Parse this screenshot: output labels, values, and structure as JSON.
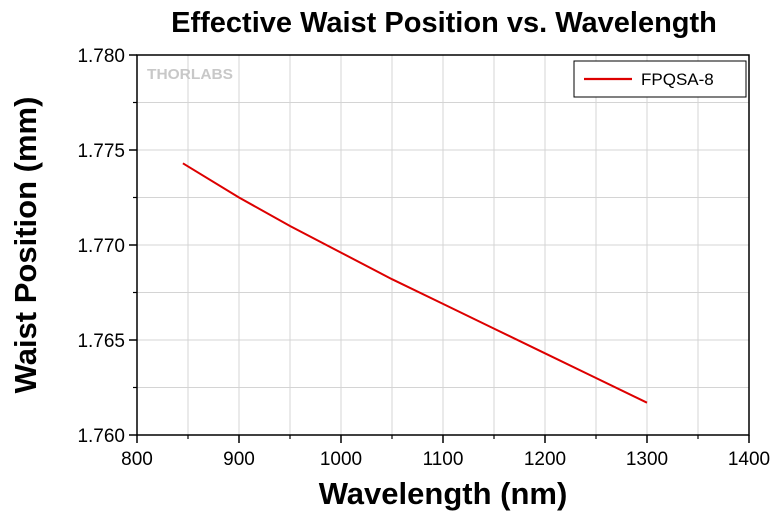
{
  "chart_data": {
    "type": "line",
    "title": "Effective Waist Position vs. Wavelength",
    "xlabel": "Wavelength (nm)",
    "ylabel": "Waist Position (mm)",
    "xlim": [
      800,
      1400
    ],
    "ylim": [
      1.76,
      1.78
    ],
    "xticks": [
      800,
      900,
      1000,
      1100,
      1200,
      1300,
      1400
    ],
    "xtick_labels": [
      "800",
      "900",
      "1000",
      "1100",
      "1200",
      "1300",
      "1400"
    ],
    "yticks": [
      1.76,
      1.765,
      1.77,
      1.775,
      1.78
    ],
    "ytick_labels": [
      "1.760",
      "1.765",
      "1.770",
      "1.775",
      "1.780"
    ],
    "grid": true,
    "legend_position": "top-right",
    "watermark": "THORLABS",
    "series": [
      {
        "name": "FPQSA-8",
        "color": "#dd0000",
        "x": [
          845,
          900,
          950,
          1000,
          1050,
          1100,
          1150,
          1200,
          1250,
          1300
        ],
        "y": [
          1.7743,
          1.7725,
          1.771,
          1.7696,
          1.7682,
          1.7669,
          1.7656,
          1.7643,
          1.763,
          1.7617
        ]
      }
    ]
  }
}
